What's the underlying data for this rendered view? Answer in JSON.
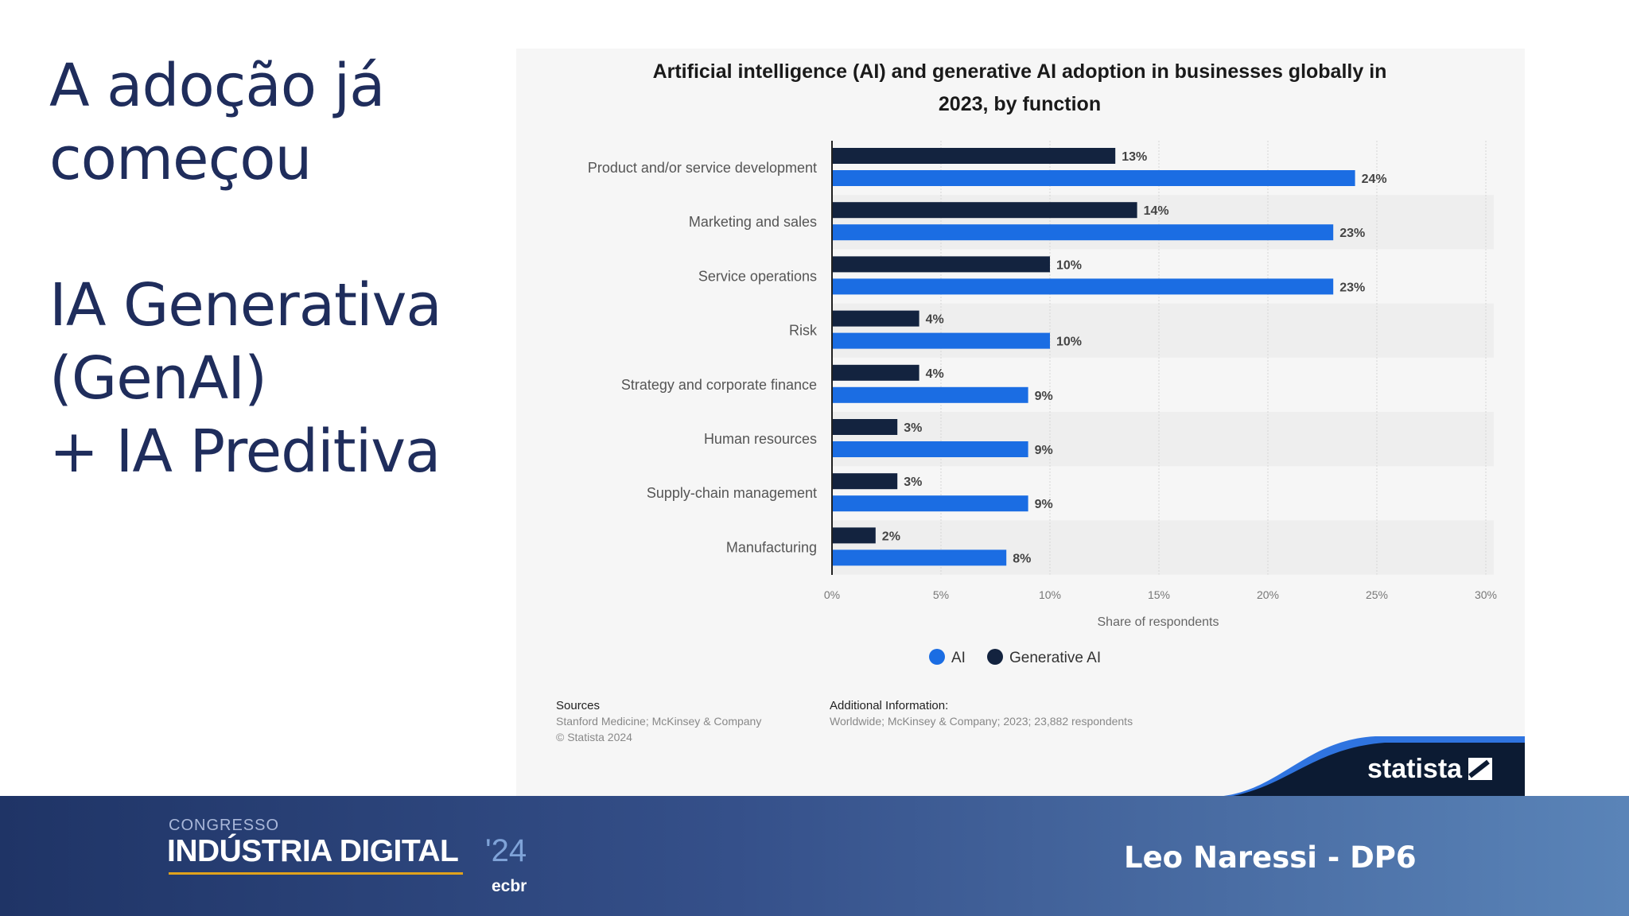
{
  "slide": {
    "title_lines": [
      "A adoção já",
      "começou"
    ],
    "subtitle_lines": [
      "IA Generativa",
      "(GenAI)",
      "+ IA Preditiva"
    ]
  },
  "chart_data": {
    "type": "bar",
    "orientation": "horizontal",
    "title_lines": [
      "Artificial intelligence (AI) and generative AI adoption in businesses globally in",
      "2023, by function"
    ],
    "categories": [
      "Product and/or service development",
      "Marketing and sales",
      "Service operations",
      "Risk",
      "Strategy and corporate finance",
      "Human resources",
      "Supply-chain management",
      "Manufacturing"
    ],
    "series": [
      {
        "name": "Generative AI",
        "color": "#13233f",
        "values": [
          13,
          14,
          10,
          4,
          4,
          3,
          3,
          2
        ],
        "labels": [
          "13%",
          "14%",
          "10%",
          "4%",
          "4%",
          "3%",
          "3%",
          "2%"
        ]
      },
      {
        "name": "AI",
        "color": "#1b6de3",
        "values": [
          24,
          23,
          23,
          10,
          9,
          9,
          9,
          8
        ],
        "labels": [
          "24%",
          "23%",
          "23%",
          "10%",
          "9%",
          "9%",
          "9%",
          "8%"
        ]
      }
    ],
    "xlim": [
      0,
      30
    ],
    "xticks": [
      0,
      5,
      10,
      15,
      20,
      25,
      30
    ],
    "xtick_labels": [
      "0%",
      "5%",
      "10%",
      "15%",
      "20%",
      "25%",
      "30%"
    ],
    "xlabel": "Share of respondents",
    "legend": [
      {
        "name": "AI",
        "color": "#1b6de3"
      },
      {
        "name": "Generative AI",
        "color": "#13233f"
      }
    ],
    "grid": true
  },
  "sources": {
    "heading": "Sources",
    "line1": "Stanford Medicine; McKinsey & Company",
    "line2": "© Statista 2024"
  },
  "additional": {
    "heading": "Additional Information:",
    "line1": "Worldwide; McKinsey & Company; 2023; 23,882 respondents"
  },
  "statista_logo": "statista",
  "footer": {
    "congress_label": "CONGRESSO",
    "event_name": "INDÚSTRIA DIGITAL",
    "event_year": "'24",
    "organizer": "ecbr",
    "presenter": "Leo Naressi - DP6"
  },
  "colors": {
    "title_text": "#1f2d5c",
    "ai": "#1b6de3",
    "genai": "#13233f",
    "footer_start": "#1f3466",
    "footer_end": "#5a84b8"
  }
}
